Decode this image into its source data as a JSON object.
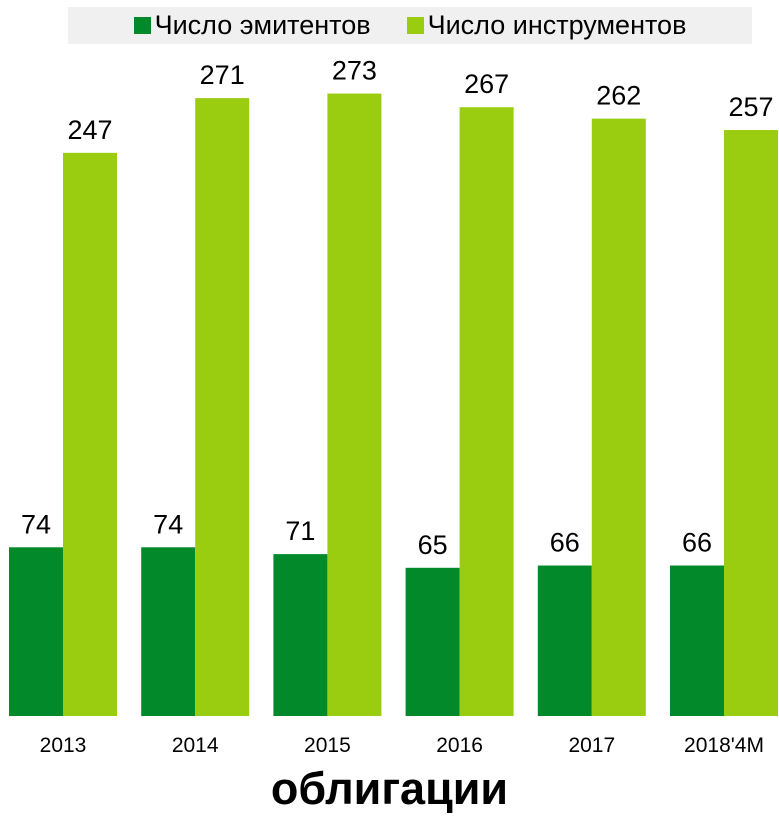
{
  "legend": {
    "items": [
      {
        "label": "Число эмитентов",
        "color": "#028a2a"
      },
      {
        "label": "Число инструментов",
        "color": "#9acd10"
      }
    ]
  },
  "caption": "облигации",
  "chart_data": {
    "type": "bar",
    "categories": [
      "2013",
      "2014",
      "2015",
      "2016",
      "2017",
      "2018'4M"
    ],
    "series": [
      {
        "name": "Число эмитентов",
        "values": [
          74,
          74,
          71,
          65,
          66,
          66
        ],
        "color": "#028a2a"
      },
      {
        "name": "Число инструментов",
        "values": [
          247,
          271,
          273,
          267,
          262,
          257
        ],
        "color": "#9acd10"
      }
    ],
    "title": "",
    "xlabel": "",
    "ylabel": "",
    "ylim": [
      0,
      300
    ],
    "grid": false,
    "legend_position": "top",
    "data_labels": true
  }
}
